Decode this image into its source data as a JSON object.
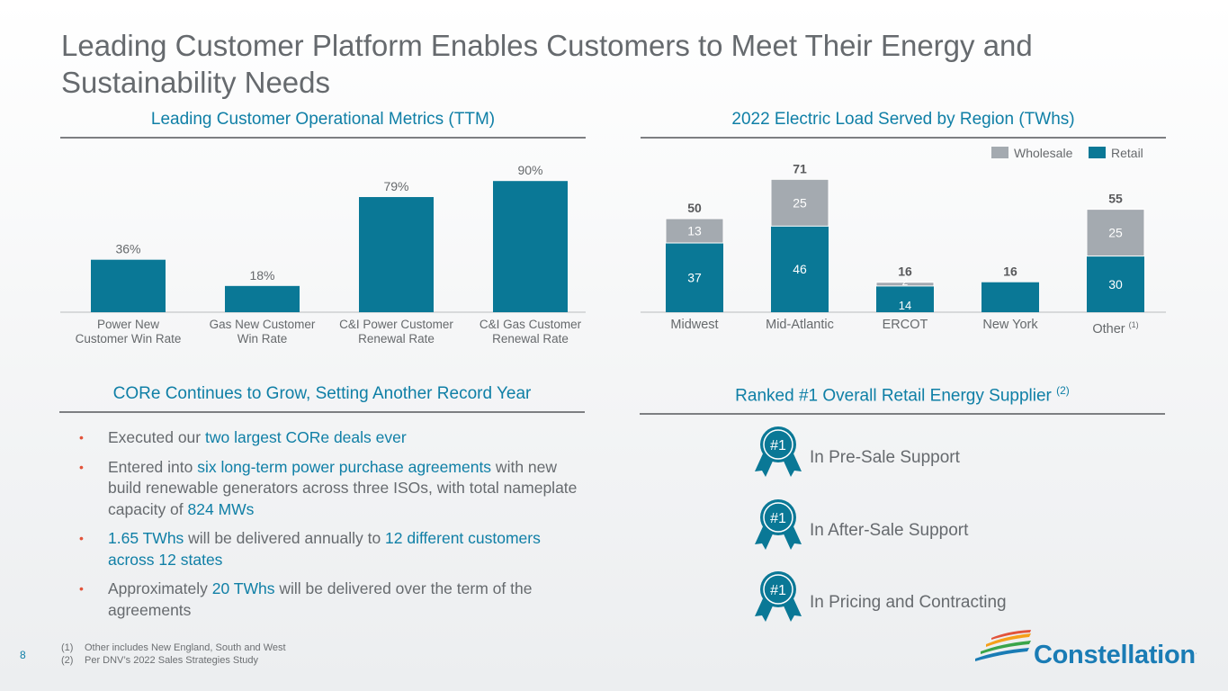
{
  "page": {
    "title": "Leading Customer Platform Enables Customers to Meet Their Energy and Sustainability Needs",
    "page_number": "8"
  },
  "sections": {
    "metrics_title": "Leading Customer Operational Metrics (TTM)",
    "load_title": "2022 Electric Load Served by Region (TWhs)",
    "core_title": "CORe Continues to Grow, Setting Another Record Year",
    "ranked_title": "Ranked #1 Overall Retail Energy Supplier",
    "ranked_note": "(2)"
  },
  "colors": {
    "accent": "#0f7fa6",
    "wholesale": "#a4aab0",
    "retail": "#0a7896",
    "bullet": "#e2533a"
  },
  "chart_data": [
    {
      "type": "bar",
      "title": "Leading Customer Operational Metrics (TTM)",
      "categories": [
        "Power New Customer Win Rate",
        "Gas New Customer Win Rate",
        "C&I Power Customer Renewal Rate",
        "C&I Gas Customer Renewal Rate"
      ],
      "category_lines": [
        [
          "Power New",
          "Customer Win Rate"
        ],
        [
          "Gas New Customer",
          "Win Rate"
        ],
        [
          "C&I Power Customer",
          "Renewal Rate"
        ],
        [
          "C&I Gas Customer",
          "Renewal Rate"
        ]
      ],
      "values": [
        36,
        18,
        79,
        90
      ],
      "labels": [
        "36%",
        "18%",
        "79%",
        "90%"
      ],
      "unit": "%",
      "ylim": [
        0,
        100
      ]
    },
    {
      "type": "bar",
      "stacked": true,
      "title": "2022 Electric Load Served by Region (TWhs)",
      "categories": [
        "Midwest",
        "Mid-Atlantic",
        "ERCOT",
        "New York",
        "Other"
      ],
      "category_notes": [
        "",
        "",
        "",
        "",
        "(1)"
      ],
      "series": [
        {
          "name": "Retail",
          "values": [
            37,
            46,
            14,
            16,
            30
          ]
        },
        {
          "name": "Wholesale",
          "values": [
            13,
            25,
            2,
            0,
            25
          ]
        }
      ],
      "totals": [
        50,
        71,
        16,
        16,
        55
      ],
      "legend": [
        "Wholesale",
        "Retail"
      ],
      "ylim": [
        0,
        80
      ]
    }
  ],
  "core": {
    "bullets": [
      [
        {
          "t": "Executed our ",
          "h": false
        },
        {
          "t": "two largest CORe deals ever",
          "h": true
        }
      ],
      [
        {
          "t": "Entered into ",
          "h": false
        },
        {
          "t": "six long-term power purchase agreements",
          "h": true
        },
        {
          "t": " with new build renewable generators across three ISOs, with total nameplate capacity of ",
          "h": false
        },
        {
          "t": "824 MWs",
          "h": true
        }
      ],
      [
        {
          "t": "1.65 TWhs",
          "h": true
        },
        {
          "t": " will be delivered annually to ",
          "h": false
        },
        {
          "t": "12 different customers across 12 states",
          "h": true
        }
      ],
      [
        {
          "t": "Approximately ",
          "h": false
        },
        {
          "t": "20 TWhs",
          "h": true
        },
        {
          "t": " will be delivered over the term of the agreements",
          "h": false
        }
      ]
    ]
  },
  "awards": {
    "badge": "#1",
    "items": [
      "In Pre-Sale Support",
      "In After-Sale Support",
      "In Pricing and Contracting"
    ]
  },
  "footnotes": [
    {
      "num": "(1)",
      "text": "Other includes New England, South and West"
    },
    {
      "num": "(2)",
      "text": "Per DNV’s 2022 Sales Strategies Study"
    }
  ],
  "brand": {
    "name": "Constellation",
    "mark": "."
  }
}
